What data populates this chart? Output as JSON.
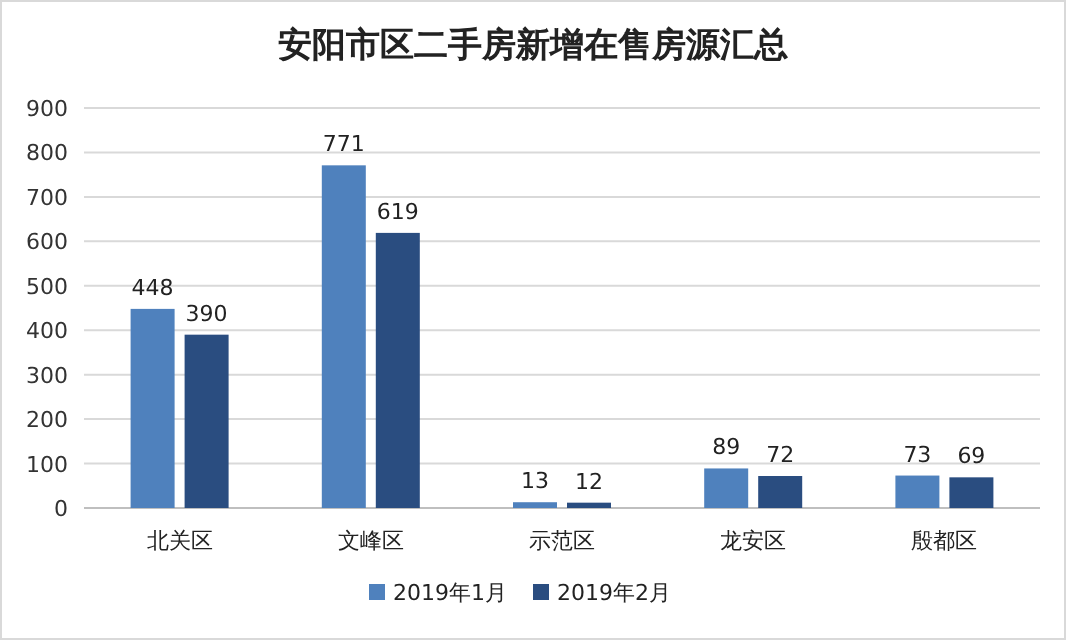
{
  "chart_data": {
    "type": "bar",
    "title": "安阳市区二手房新增在售房源汇总",
    "categories": [
      "北关区",
      "文峰区",
      "示范区",
      "龙安区",
      "殷都区"
    ],
    "series": [
      {
        "name": "2019年1月",
        "color": "#4f81bd",
        "values": [
          448,
          771,
          13,
          89,
          73
        ]
      },
      {
        "name": "2019年2月",
        "color": "#2a4d80",
        "values": [
          390,
          619,
          12,
          72,
          69
        ]
      }
    ],
    "ylim": [
      0,
      900
    ],
    "yticks": [
      0,
      100,
      200,
      300,
      400,
      500,
      600,
      700,
      800,
      900
    ],
    "grid": "y",
    "legend": "bottom",
    "data_labels": true
  }
}
